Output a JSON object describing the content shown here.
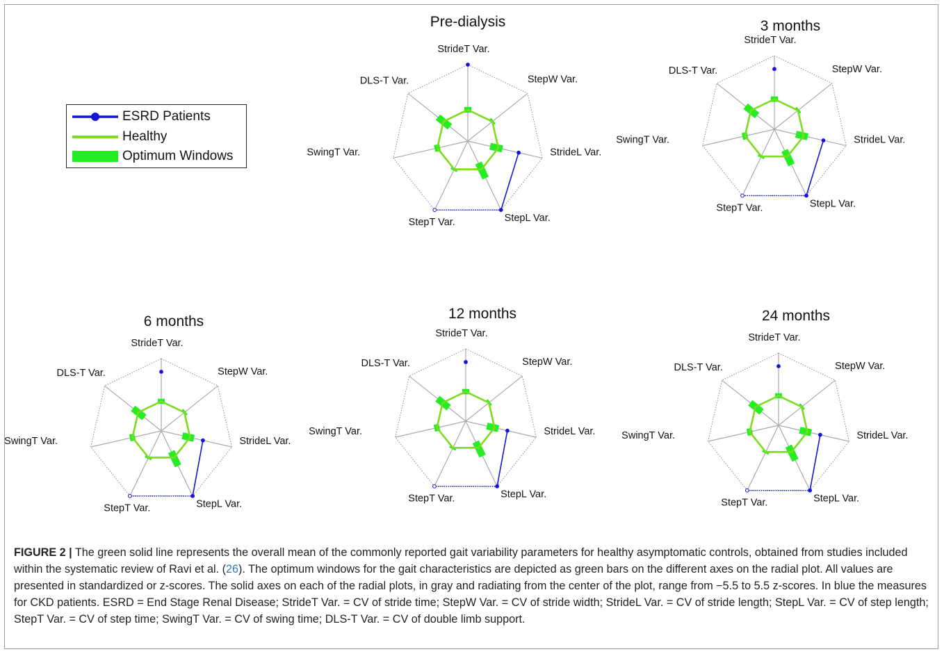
{
  "legend": {
    "esrd": "ESRD Patients",
    "healthy": "Healthy",
    "optimum": "Optimum Windows"
  },
  "colors": {
    "esrd": "#1515d6",
    "healthy": "#7ddc1f",
    "optimum": "#22ee22",
    "axis": "#aaaaaa",
    "web": "#888888"
  },
  "chart_data": [
    {
      "type": "radar",
      "title": "Pre-dialysis",
      "axes": [
        "StrideT Var.",
        "StepW Var.",
        "StrideL Var.",
        "StepL Var.",
        "StepT Var.",
        "SwingT Var.",
        "DLS-T Var."
      ],
      "range": [
        -5.5,
        5.5
      ],
      "series": [
        {
          "name": "ESRD Patients",
          "values": [
            5.5,
            -5.5,
            2.0,
            5.5,
            5.5,
            -5.5,
            -5.5
          ],
          "connected": [
            false,
            false,
            true,
            true,
            false,
            false,
            false
          ]
        },
        {
          "name": "Healthy",
          "values": [
            -1.0,
            -1.0,
            -1.0,
            -1.0,
            -1.0,
            -1.0,
            -1.0
          ]
        },
        {
          "name": "Optimum Windows",
          "windows": [
            [
              -1.4,
              -0.6
            ],
            [
              -1.2,
              -0.8
            ],
            [
              -2.2,
              -0.4
            ],
            [
              -2.0,
              0.4
            ],
            [
              -1.2,
              -0.8
            ],
            [
              -1.4,
              -0.6
            ],
            [
              -2.2,
              0.0
            ]
          ]
        }
      ]
    },
    {
      "type": "radar",
      "title": "3 months",
      "axes": [
        "StrideT Var.",
        "StepW Var.",
        "StrideL Var.",
        "StepL Var.",
        "StepT Var.",
        "SwingT Var.",
        "DLS-T Var."
      ],
      "range": [
        -5.5,
        5.5
      ],
      "series": [
        {
          "name": "ESRD Patients",
          "values": [
            3.5,
            -5.5,
            2.0,
            5.5,
            5.5,
            -5.5,
            -5.5
          ],
          "connected": [
            false,
            false,
            true,
            true,
            false,
            false,
            false
          ]
        },
        {
          "name": "Healthy",
          "values": [
            -1.0,
            -1.0,
            -1.0,
            -1.0,
            -1.0,
            -1.0,
            -1.0
          ]
        },
        {
          "name": "Optimum Windows",
          "windows": [
            [
              -1.4,
              -0.6
            ],
            [
              -1.2,
              -0.8
            ],
            [
              -2.2,
              -0.4
            ],
            [
              -2.0,
              0.4
            ],
            [
              -1.2,
              -0.8
            ],
            [
              -1.4,
              -0.6
            ],
            [
              -2.2,
              0.0
            ]
          ]
        }
      ]
    },
    {
      "type": "radar",
      "title": "6 months",
      "axes": [
        "StrideT Var.",
        "StepW Var.",
        "StrideL Var.",
        "StepL Var.",
        "StepT Var.",
        "SwingT Var.",
        "DLS-T Var."
      ],
      "range": [
        -5.5,
        5.5
      ],
      "series": [
        {
          "name": "ESRD Patients",
          "values": [
            3.5,
            -5.5,
            1.0,
            5.5,
            5.5,
            -5.5,
            -5.5
          ],
          "connected": [
            false,
            false,
            true,
            true,
            false,
            false,
            false
          ]
        },
        {
          "name": "Healthy",
          "values": [
            -1.0,
            -1.0,
            -1.0,
            -1.0,
            -1.0,
            -1.0,
            -1.0
          ]
        },
        {
          "name": "Optimum Windows",
          "windows": [
            [
              -1.4,
              -0.6
            ],
            [
              -1.2,
              -0.8
            ],
            [
              -2.2,
              -0.4
            ],
            [
              -2.0,
              0.4
            ],
            [
              -1.2,
              -0.8
            ],
            [
              -1.4,
              -0.6
            ],
            [
              -2.2,
              0.0
            ]
          ]
        }
      ]
    },
    {
      "type": "radar",
      "title": "12 months",
      "axes": [
        "StrideT Var.",
        "StepW Var.",
        "StrideL Var.",
        "StepL Var.",
        "StepT Var.",
        "SwingT Var.",
        "DLS-T Var."
      ],
      "range": [
        -5.5,
        5.5
      ],
      "series": [
        {
          "name": "ESRD Patients",
          "values": [
            3.5,
            -5.5,
            1.0,
            5.5,
            5.5,
            -5.5,
            -5.5
          ],
          "connected": [
            false,
            false,
            true,
            true,
            false,
            false,
            false
          ]
        },
        {
          "name": "Healthy",
          "values": [
            -1.0,
            -1.0,
            -1.0,
            -1.0,
            -1.0,
            -1.0,
            -1.0
          ]
        },
        {
          "name": "Optimum Windows",
          "windows": [
            [
              -1.4,
              -0.6
            ],
            [
              -1.2,
              -0.8
            ],
            [
              -2.2,
              -0.4
            ],
            [
              -2.0,
              0.4
            ],
            [
              -1.2,
              -0.8
            ],
            [
              -1.4,
              -0.6
            ],
            [
              -2.2,
              0.0
            ]
          ]
        }
      ]
    },
    {
      "type": "radar",
      "title": "24 months",
      "axes": [
        "StrideT Var.",
        "StepW Var.",
        "StrideL Var.",
        "StepL Var.",
        "StepT Var.",
        "SwingT Var.",
        "DLS-T Var."
      ],
      "range": [
        -5.5,
        5.5
      ],
      "series": [
        {
          "name": "ESRD Patients",
          "values": [
            3.5,
            -5.5,
            1.0,
            5.5,
            5.5,
            -5.5,
            -5.5
          ],
          "connected": [
            false,
            false,
            true,
            true,
            false,
            false,
            false
          ]
        },
        {
          "name": "Healthy",
          "values": [
            -1.0,
            -1.0,
            -1.0,
            -1.0,
            -1.0,
            -1.0,
            -1.0
          ]
        },
        {
          "name": "Optimum Windows",
          "windows": [
            [
              -1.4,
              -0.6
            ],
            [
              -1.2,
              -0.8
            ],
            [
              -2.2,
              -0.4
            ],
            [
              -2.0,
              0.4
            ],
            [
              -1.2,
              -0.8
            ],
            [
              -1.4,
              -0.6
            ],
            [
              -2.2,
              0.0
            ]
          ]
        }
      ]
    }
  ],
  "caption": {
    "lead": "FIGURE 2 |",
    "part1": " The green solid line represents the overall mean of the commonly reported gait variability parameters for healthy asymptomatic controls, obtained from studies included within the systematic review of Ravi et al. (",
    "ref": "26",
    "part2": "). The optimum windows for the gait characteristics are depicted as green bars on the different axes on the radial plot. All values are presented in standardized or z-scores. The solid axes on each of the radial plots, in gray and radiating from the center of the plot, range from −5.5 to 5.5 z-scores. In blue the measures for CKD patients. ESRD = End Stage Renal Disease; StrideT Var. = CV of stride time; StepW Var. = CV of stride width; StrideL Var. = CV of stride length; StepL Var. = CV of step length; StepT Var. = CV of step time; SwingT Var. = CV of swing time; DLS-T Var. = CV of double limb support."
  }
}
